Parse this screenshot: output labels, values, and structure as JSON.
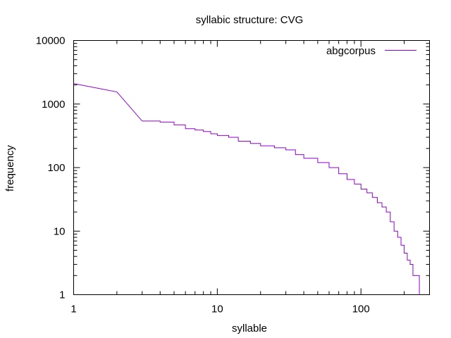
{
  "chart_data": {
    "type": "line",
    "title": "syllabic structure: CVG",
    "xlabel": "syllable",
    "ylabel": "frequency",
    "xscale": "log",
    "yscale": "log",
    "xlim": [
      1,
      300
    ],
    "ylim": [
      1,
      10000
    ],
    "xticks": [
      {
        "value": 1,
        "label": "1"
      },
      {
        "value": 10,
        "label": "10"
      },
      {
        "value": 100,
        "label": "100"
      }
    ],
    "yticks": [
      {
        "value": 1,
        "label": "1"
      },
      {
        "value": 10,
        "label": "10"
      },
      {
        "value": 100,
        "label": "100"
      },
      {
        "value": 1000,
        "label": "1000"
      },
      {
        "value": 10000,
        "label": "10000"
      }
    ],
    "grid": false,
    "legend_position": "top-right",
    "series": [
      {
        "name": "abgcorpus",
        "color": "#9400d3",
        "style": "steps",
        "x": [
          1,
          2,
          3,
          4,
          5,
          6,
          7,
          8,
          9,
          10,
          12,
          14,
          17,
          20,
          25,
          30,
          35,
          40,
          50,
          60,
          70,
          80,
          90,
          100,
          110,
          120,
          130,
          140,
          150,
          160,
          170,
          180,
          190,
          200,
          210,
          220,
          230,
          240,
          250,
          255
        ],
        "values": [
          2100,
          1550,
          540,
          520,
          470,
          410,
          390,
          370,
          340,
          320,
          300,
          260,
          240,
          220,
          205,
          190,
          160,
          140,
          120,
          100,
          80,
          65,
          55,
          46,
          40,
          34,
          28,
          24,
          20,
          14,
          10,
          8,
          6,
          4.5,
          3.5,
          3,
          2,
          2,
          2,
          1
        ]
      }
    ]
  }
}
